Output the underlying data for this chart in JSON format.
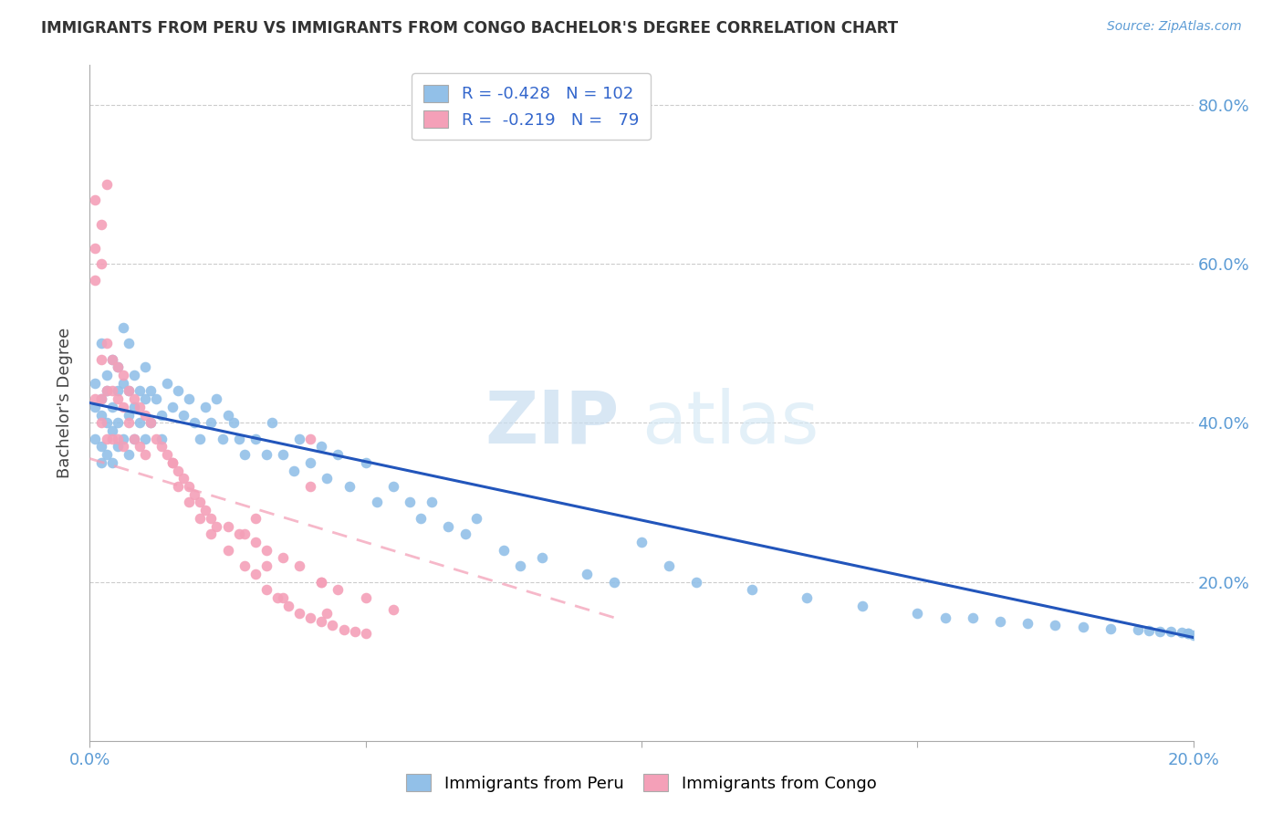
{
  "title": "IMMIGRANTS FROM PERU VS IMMIGRANTS FROM CONGO BACHELOR'S DEGREE CORRELATION CHART",
  "source": "Source: ZipAtlas.com",
  "ylabel": "Bachelor's Degree",
  "xlim": [
    0.0,
    0.2
  ],
  "ylim": [
    0.0,
    0.85
  ],
  "xticks": [
    0.0,
    0.05,
    0.1,
    0.15,
    0.2
  ],
  "xticklabels": [
    "0.0%",
    "",
    "",
    "",
    "20.0%"
  ],
  "yticks": [
    0.2,
    0.4,
    0.6,
    0.8
  ],
  "yticklabels": [
    "20.0%",
    "40.0%",
    "60.0%",
    "80.0%"
  ],
  "peru_color": "#92c0e8",
  "congo_color": "#f4a0b8",
  "peru_line_color": "#2255bb",
  "congo_line_color": "#f4a0b8",
  "peru_scatter_x": [
    0.001,
    0.001,
    0.001,
    0.002,
    0.002,
    0.002,
    0.002,
    0.002,
    0.003,
    0.003,
    0.003,
    0.003,
    0.004,
    0.004,
    0.004,
    0.004,
    0.005,
    0.005,
    0.005,
    0.005,
    0.006,
    0.006,
    0.006,
    0.007,
    0.007,
    0.007,
    0.007,
    0.008,
    0.008,
    0.008,
    0.009,
    0.009,
    0.01,
    0.01,
    0.01,
    0.011,
    0.011,
    0.012,
    0.013,
    0.013,
    0.014,
    0.015,
    0.016,
    0.017,
    0.018,
    0.019,
    0.02,
    0.021,
    0.022,
    0.023,
    0.024,
    0.025,
    0.026,
    0.027,
    0.028,
    0.03,
    0.032,
    0.033,
    0.035,
    0.037,
    0.038,
    0.04,
    0.042,
    0.043,
    0.045,
    0.047,
    0.05,
    0.052,
    0.055,
    0.058,
    0.06,
    0.062,
    0.065,
    0.068,
    0.07,
    0.075,
    0.078,
    0.082,
    0.09,
    0.095,
    0.1,
    0.105,
    0.11,
    0.12,
    0.13,
    0.14,
    0.15,
    0.155,
    0.16,
    0.165,
    0.17,
    0.175,
    0.18,
    0.185,
    0.19,
    0.192,
    0.194,
    0.196,
    0.198,
    0.199,
    0.199,
    0.2
  ],
  "peru_scatter_y": [
    0.42,
    0.38,
    0.45,
    0.5,
    0.43,
    0.41,
    0.37,
    0.35,
    0.46,
    0.44,
    0.4,
    0.36,
    0.48,
    0.42,
    0.39,
    0.35,
    0.47,
    0.44,
    0.4,
    0.37,
    0.52,
    0.45,
    0.38,
    0.5,
    0.44,
    0.41,
    0.36,
    0.46,
    0.42,
    0.38,
    0.44,
    0.4,
    0.47,
    0.43,
    0.38,
    0.44,
    0.4,
    0.43,
    0.41,
    0.38,
    0.45,
    0.42,
    0.44,
    0.41,
    0.43,
    0.4,
    0.38,
    0.42,
    0.4,
    0.43,
    0.38,
    0.41,
    0.4,
    0.38,
    0.36,
    0.38,
    0.36,
    0.4,
    0.36,
    0.34,
    0.38,
    0.35,
    0.37,
    0.33,
    0.36,
    0.32,
    0.35,
    0.3,
    0.32,
    0.3,
    0.28,
    0.3,
    0.27,
    0.26,
    0.28,
    0.24,
    0.22,
    0.23,
    0.21,
    0.2,
    0.25,
    0.22,
    0.2,
    0.19,
    0.18,
    0.17,
    0.16,
    0.155,
    0.155,
    0.15,
    0.148,
    0.145,
    0.143,
    0.141,
    0.14,
    0.139,
    0.138,
    0.137,
    0.136,
    0.135,
    0.135,
    0.133
  ],
  "congo_scatter_x": [
    0.001,
    0.001,
    0.001,
    0.001,
    0.002,
    0.002,
    0.002,
    0.002,
    0.002,
    0.003,
    0.003,
    0.003,
    0.003,
    0.004,
    0.004,
    0.004,
    0.005,
    0.005,
    0.005,
    0.006,
    0.006,
    0.006,
    0.007,
    0.007,
    0.008,
    0.008,
    0.009,
    0.009,
    0.01,
    0.01,
    0.011,
    0.012,
    0.013,
    0.014,
    0.015,
    0.016,
    0.017,
    0.018,
    0.019,
    0.02,
    0.021,
    0.022,
    0.023,
    0.025,
    0.027,
    0.03,
    0.032,
    0.035,
    0.038,
    0.04,
    0.042,
    0.045,
    0.05,
    0.055,
    0.04,
    0.042,
    0.043,
    0.03,
    0.032,
    0.035,
    0.028,
    0.015,
    0.016,
    0.018,
    0.02,
    0.022,
    0.025,
    0.028,
    0.03,
    0.032,
    0.034,
    0.036,
    0.038,
    0.04,
    0.042,
    0.044,
    0.046,
    0.048,
    0.05
  ],
  "congo_scatter_y": [
    0.68,
    0.62,
    0.58,
    0.43,
    0.65,
    0.6,
    0.48,
    0.43,
    0.4,
    0.7,
    0.5,
    0.44,
    0.38,
    0.48,
    0.44,
    0.38,
    0.47,
    0.43,
    0.38,
    0.46,
    0.42,
    0.37,
    0.44,
    0.4,
    0.43,
    0.38,
    0.42,
    0.37,
    0.41,
    0.36,
    0.4,
    0.38,
    0.37,
    0.36,
    0.35,
    0.34,
    0.33,
    0.32,
    0.31,
    0.3,
    0.29,
    0.28,
    0.27,
    0.27,
    0.26,
    0.25,
    0.24,
    0.23,
    0.22,
    0.38,
    0.2,
    0.19,
    0.18,
    0.165,
    0.32,
    0.2,
    0.16,
    0.28,
    0.22,
    0.18,
    0.26,
    0.35,
    0.32,
    0.3,
    0.28,
    0.26,
    0.24,
    0.22,
    0.21,
    0.19,
    0.18,
    0.17,
    0.16,
    0.155,
    0.15,
    0.145,
    0.14,
    0.138,
    0.135
  ],
  "peru_line_x": [
    0.0,
    0.2
  ],
  "peru_line_y": [
    0.425,
    0.13
  ],
  "congo_line_x": [
    0.0,
    0.095
  ],
  "congo_line_y": [
    0.355,
    0.155
  ]
}
